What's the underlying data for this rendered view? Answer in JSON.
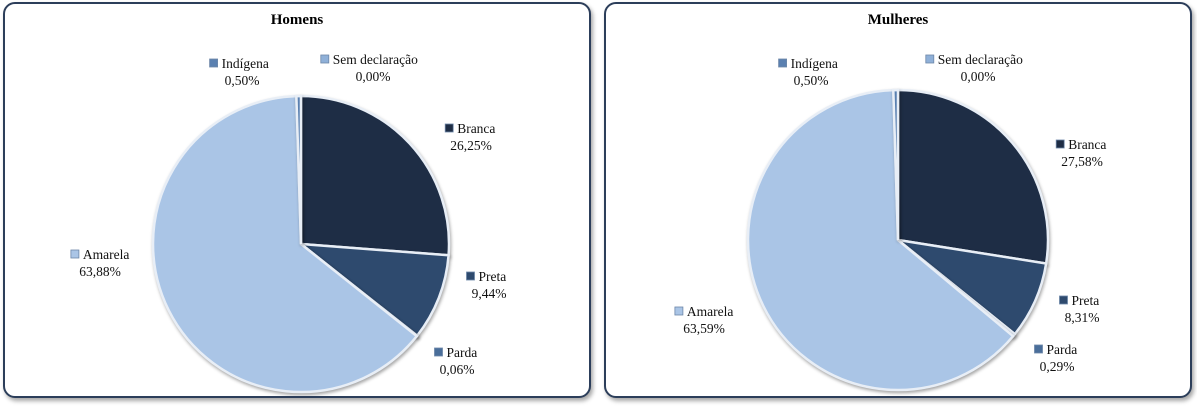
{
  "chart_data": [
    {
      "type": "pie",
      "title": "Homens",
      "slices": [
        {
          "name": "Branca",
          "value": 26.25,
          "label": "26,25%"
        },
        {
          "name": "Preta",
          "value": 9.44,
          "label": "9,44%"
        },
        {
          "name": "Parda",
          "value": 0.06,
          "label": "0,06%"
        },
        {
          "name": "Amarela",
          "value": 63.88,
          "label": "63,88%"
        },
        {
          "name": "Indígena",
          "value": 0.5,
          "label": "0,50%"
        },
        {
          "name": "Sem declaração",
          "value": 0.0,
          "label": "0,00%"
        }
      ],
      "colors": [
        "#1e2d45",
        "#2e4a6e",
        "#4a6e9a",
        "#aac5e6",
        "#5a80b0",
        "#8fb0d8"
      ]
    },
    {
      "type": "pie",
      "title": "Mulheres",
      "slices": [
        {
          "name": "Branca",
          "value": 27.58,
          "label": "27,58%"
        },
        {
          "name": "Preta",
          "value": 8.31,
          "label": "8,31%"
        },
        {
          "name": "Parda",
          "value": 0.29,
          "label": "0,29%"
        },
        {
          "name": "Amarela",
          "value": 63.59,
          "label": "63,59%"
        },
        {
          "name": "Indígena",
          "value": 0.5,
          "label": "0,50%"
        },
        {
          "name": "Sem declaração",
          "value": 0.0,
          "label": "0,00%"
        }
      ],
      "colors": [
        "#1e2d45",
        "#2e4a6e",
        "#4a6e9a",
        "#aac5e6",
        "#5a80b0",
        "#8fb0d8"
      ]
    }
  ]
}
